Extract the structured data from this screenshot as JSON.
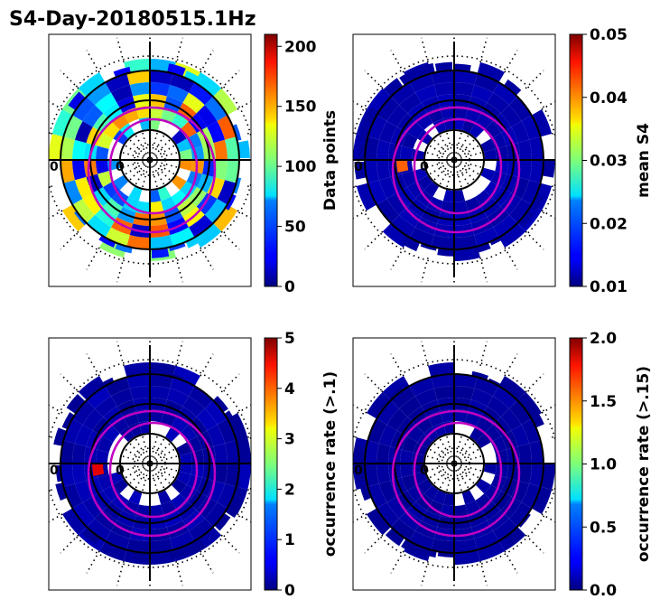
{
  "title": "S4-Day-20180515.1Hz",
  "chart_data": [
    {
      "type": "heatmap",
      "projection": "polar",
      "colormap": "jet",
      "colorbar_label": "Data points",
      "colorbar_range": [
        0,
        210
      ],
      "colorbar_ticks": [
        "0",
        "50",
        "100",
        "150",
        "200"
      ],
      "colorbar_tick_values": [
        0,
        50,
        100,
        150,
        200
      ],
      "ring_label_left": "0",
      "ring_label_inner": "0",
      "cell_level": 0.42,
      "cell_spread": 0.38,
      "hotspot_level": 0.0
    },
    {
      "type": "heatmap",
      "projection": "polar",
      "colormap": "jet",
      "colorbar_label": "mean S4",
      "colorbar_range": [
        0.01,
        0.05
      ],
      "colorbar_ticks": [
        "0.01",
        "0.02",
        "0.03",
        "0.04",
        "0.05"
      ],
      "colorbar_tick_values": [
        0.01,
        0.02,
        0.03,
        0.04,
        0.05
      ],
      "ring_label_left": "0",
      "ring_label_inner": "0",
      "cell_level": 0.03,
      "cell_spread": 0.03,
      "hotspot_level": 0.78
    },
    {
      "type": "heatmap",
      "projection": "polar",
      "colormap": "jet",
      "colorbar_label": "occurrence rate (>.1)",
      "colorbar_range": [
        0,
        5
      ],
      "colorbar_ticks": [
        "0",
        "1",
        "2",
        "3",
        "4",
        "5"
      ],
      "colorbar_tick_values": [
        0,
        1,
        2,
        3,
        4,
        5
      ],
      "ring_label_left": "0",
      "ring_label_inner": "0",
      "cell_level": 0.02,
      "cell_spread": 0.04,
      "hotspot_level": 0.9
    },
    {
      "type": "heatmap",
      "projection": "polar",
      "colormap": "jet",
      "colorbar_label": "occurrence rate (>.15)",
      "colorbar_range": [
        0,
        2
      ],
      "colorbar_ticks": [
        "0.0",
        "0.5",
        "1.0",
        "1.5",
        "2.0"
      ],
      "colorbar_tick_values": [
        0,
        0.5,
        1.0,
        1.5,
        2.0
      ],
      "ring_label_left": "0",
      "ring_label_inner": "0",
      "cell_level": 0.02,
      "cell_spread": 0.02,
      "hotspot_level": 0.0
    }
  ]
}
